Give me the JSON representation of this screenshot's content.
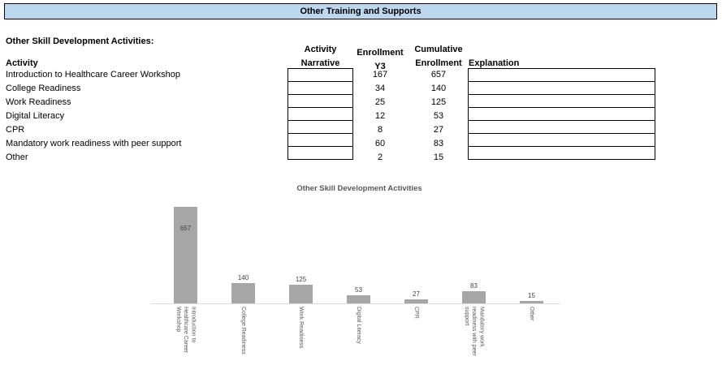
{
  "banner": {
    "title": "Other Training and Supports",
    "bg_color": "#bdd7ee"
  },
  "section_heading": "Other Skill Development Activities:",
  "table": {
    "header_activity": "Activity",
    "col_activity_narrative": {
      "line1": "Activity",
      "line2": "Narrative"
    },
    "col_enrollment_y3": {
      "line1": "Enrollment",
      "line2": "Y3"
    },
    "col_cumulative_enrollment": {
      "line1": "Cumulative",
      "line2": "Enrollment"
    },
    "col_explanation": "Explanation",
    "rows": [
      {
        "activity": "Introduction to Healthcare Career Workshop",
        "narrative": "",
        "enrollment_y3": 167,
        "cumulative_enrollment": 657,
        "explanation": ""
      },
      {
        "activity": "College Readiness",
        "narrative": "",
        "enrollment_y3": 34,
        "cumulative_enrollment": 140,
        "explanation": ""
      },
      {
        "activity": "Work Readiness",
        "narrative": "",
        "enrollment_y3": 25,
        "cumulative_enrollment": 125,
        "explanation": ""
      },
      {
        "activity": "Digital Literacy",
        "narrative": "",
        "enrollment_y3": 12,
        "cumulative_enrollment": 53,
        "explanation": ""
      },
      {
        "activity": "CPR",
        "narrative": "",
        "enrollment_y3": 8,
        "cumulative_enrollment": 27,
        "explanation": ""
      },
      {
        "activity": "Mandatory work readiness with peer support",
        "narrative": "",
        "enrollment_y3": 60,
        "cumulative_enrollment": 83,
        "explanation": ""
      },
      {
        "activity": "Other",
        "narrative": "",
        "enrollment_y3": 2,
        "cumulative_enrollment": 15,
        "explanation": ""
      }
    ]
  },
  "chart_data": {
    "type": "bar",
    "title": "Other Skill Development Activities",
    "categories": [
      "Introduction to Healthcare Career Workshop",
      "College Readiness",
      "Work Readiness",
      "Digital Literacy",
      "CPR",
      "Mandatory work readiness with peer support",
      "Other"
    ],
    "values": [
      657,
      140,
      125,
      53,
      27,
      83,
      15
    ],
    "xlabel": "",
    "ylabel": "",
    "ylim": [
      0,
      660
    ],
    "grid": false,
    "legend": false,
    "data_labels": true,
    "category_label_rotation": "vertical",
    "bar_color": "#a6a6a6",
    "axis_line_color": "#d9d9d9",
    "title_color": "#595959",
    "category_label_color": "#595959",
    "data_label_color": "#404040"
  }
}
